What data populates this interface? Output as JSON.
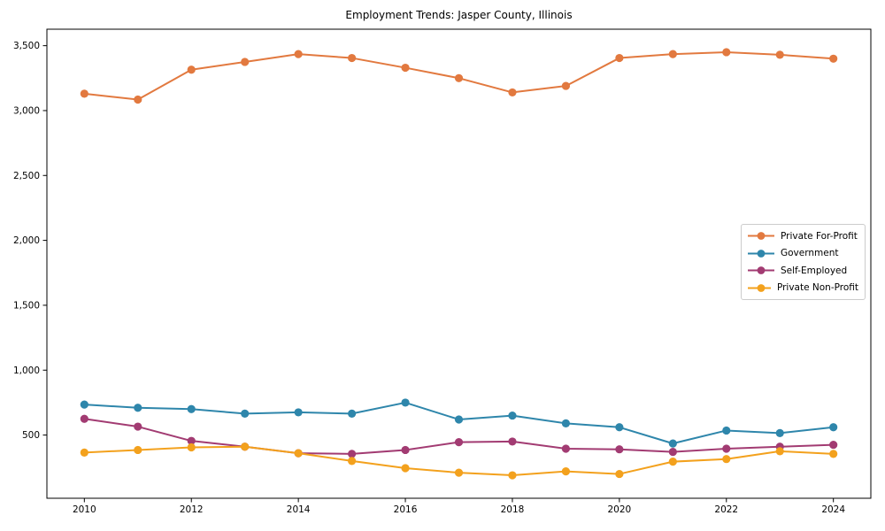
{
  "chart_data": {
    "type": "line",
    "title": "Employment Trends: Jasper County, Illinois",
    "xlabel": "",
    "ylabel": "",
    "grid": false,
    "marker": "circle",
    "legend_position": "center right",
    "x": [
      2010,
      2011,
      2012,
      2013,
      2014,
      2015,
      2016,
      2017,
      2018,
      2019,
      2020,
      2021,
      2022,
      2023,
      2024
    ],
    "xticks": [
      2010,
      2012,
      2014,
      2016,
      2018,
      2020,
      2022,
      2024
    ],
    "xtick_labels": [
      "2010",
      "2012",
      "2014",
      "2016",
      "2018",
      "2020",
      "2022",
      "2024"
    ],
    "yticks": [
      500,
      1000,
      1500,
      2000,
      2500,
      3000,
      3500
    ],
    "ytick_labels": [
      "500",
      "1,000",
      "1,500",
      "2,000",
      "2,500",
      "3,000",
      "3,500"
    ],
    "xlim": [
      2009.3,
      2024.7
    ],
    "ylim": [
      13,
      3627
    ],
    "series": [
      {
        "name": "Private For-Profit",
        "color": "#E2793F",
        "values": [
          3130,
          3085,
          3315,
          3375,
          3435,
          3405,
          3330,
          3250,
          3140,
          3190,
          3405,
          3435,
          3450,
          3430,
          3400
        ]
      },
      {
        "name": "Government",
        "color": "#2E86AB",
        "values": [
          735,
          710,
          700,
          665,
          675,
          665,
          750,
          620,
          650,
          590,
          560,
          435,
          535,
          515,
          560
        ]
      },
      {
        "name": "Self-Employed",
        "color": "#A23B72",
        "values": [
          625,
          565,
          455,
          410,
          360,
          355,
          385,
          445,
          450,
          395,
          390,
          370,
          395,
          410,
          425
        ]
      },
      {
        "name": "Private Non-Profit",
        "color": "#F3A11D",
        "values": [
          365,
          385,
          405,
          410,
          360,
          300,
          245,
          210,
          190,
          220,
          200,
          295,
          315,
          375,
          355
        ]
      }
    ]
  }
}
